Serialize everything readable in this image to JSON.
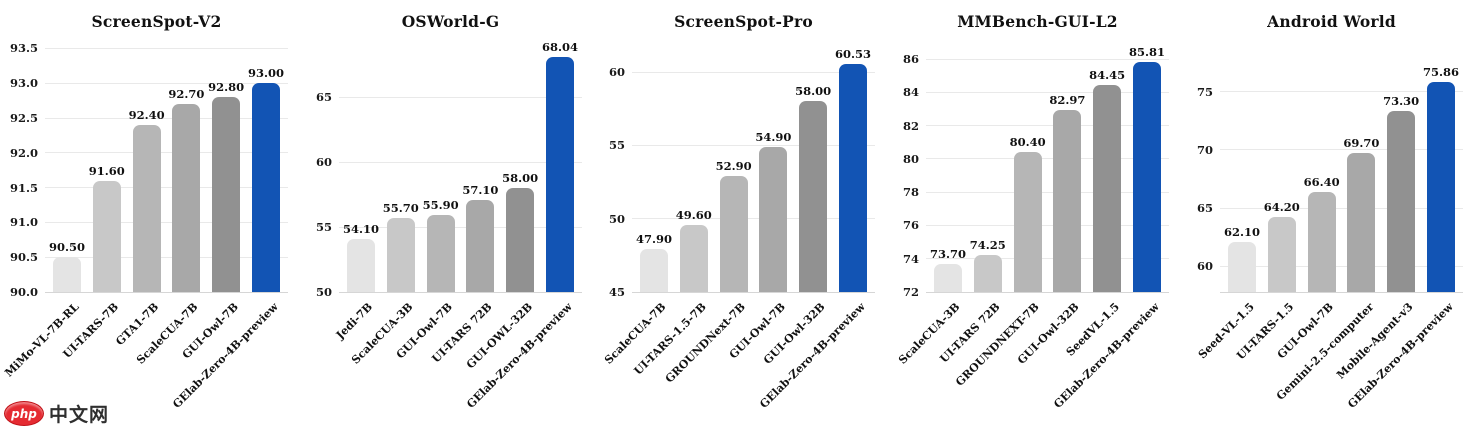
{
  "palette": {
    "bar_grays": [
      "#e4e4e4",
      "#c8c8c8",
      "#b6b6b6",
      "#a8a8a8",
      "#919191"
    ],
    "accent_blue": "#1254b4",
    "grid_color": "#e9e9e9",
    "axis_color": "#d6d6d6",
    "text_color": "#111111"
  },
  "watermark": {
    "badge_text": "php",
    "site_text": "中文网"
  },
  "chart_data": [
    {
      "type": "bar",
      "title": "ScreenSpot-V2",
      "categories": [
        "MiMo-VL-7B-RL",
        "UI-TARS-7B",
        "GTA1-7B",
        "ScaleCUA-7B",
        "GUI-Owl-7B",
        "GElab-Zero-4B-preview"
      ],
      "values": [
        90.5,
        91.6,
        92.4,
        92.7,
        92.8,
        93.0
      ],
      "value_labels": [
        "90.50",
        "91.60",
        "92.40",
        "92.70",
        "92.80",
        "93.00"
      ],
      "ytick_values": [
        90.0,
        90.5,
        91.0,
        91.5,
        92.0,
        92.5,
        93.0,
        93.5
      ],
      "ytick_labels": [
        "90.0",
        "90.5",
        "91.0",
        "91.5",
        "92.0",
        "92.5",
        "93.0",
        "93.5"
      ],
      "ylim": [
        90.0,
        93.55
      ],
      "grid": true,
      "legend": null,
      "xlabel": "",
      "ylabel": ""
    },
    {
      "type": "bar",
      "title": "OSWorld-G",
      "categories": [
        "Jedi-7B",
        "ScaleCUA-3B",
        "GUI-Owl-7B",
        "UI-TARS 72B",
        "GUI-OWL-32B",
        "GElab-Zero-4B-preview"
      ],
      "values": [
        54.1,
        55.7,
        55.9,
        57.1,
        58.0,
        68.04
      ],
      "value_labels": [
        "54.10",
        "55.70",
        "55.90",
        "57.10",
        "58.00",
        "68.04"
      ],
      "ytick_values": [
        50,
        55,
        60,
        65
      ],
      "ytick_labels": [
        "50",
        "55",
        "60",
        "65"
      ],
      "ylim": [
        50.0,
        69.0
      ],
      "grid": true,
      "legend": null,
      "xlabel": "",
      "ylabel": ""
    },
    {
      "type": "bar",
      "title": "ScreenSpot-Pro",
      "categories": [
        "ScaleCUA-7B",
        "UI-TARS-1.5-7B",
        "GROUNDNext-7B",
        "GUI-Owl-7B",
        "GUI-Owl-32B",
        "GElab-Zero-4B-preview"
      ],
      "values": [
        47.9,
        49.6,
        52.9,
        54.9,
        58.0,
        60.53
      ],
      "value_labels": [
        "47.90",
        "49.60",
        "52.90",
        "54.90",
        "58.00",
        "60.53"
      ],
      "ytick_values": [
        45,
        50,
        55,
        60
      ],
      "ytick_labels": [
        "45",
        "50",
        "55",
        "60"
      ],
      "ylim": [
        45.0,
        61.85
      ],
      "grid": true,
      "legend": null,
      "xlabel": "",
      "ylabel": ""
    },
    {
      "type": "bar",
      "title": "MMBench-GUI-L2",
      "categories": [
        "ScaleCUA-3B",
        "UI-TARS 72B",
        "GROUNDNEXT-7B",
        "GUI-Owl-32B",
        "SeedVL-1.5",
        "GElab-Zero-4B-preview"
      ],
      "values": [
        73.7,
        74.25,
        80.4,
        82.97,
        84.45,
        85.81
      ],
      "value_labels": [
        "73.70",
        "74.25",
        "80.40",
        "82.97",
        "84.45",
        "85.81"
      ],
      "ytick_values": [
        72,
        74,
        76,
        78,
        80,
        82,
        84,
        86
      ],
      "ytick_labels": [
        "72",
        "74",
        "76",
        "78",
        "80",
        "82",
        "84",
        "86"
      ],
      "ylim": [
        72.0,
        86.85
      ],
      "grid": true,
      "legend": null,
      "xlabel": "",
      "ylabel": ""
    },
    {
      "type": "bar",
      "title": "Android World",
      "categories": [
        "Seed-VL-1.5",
        "UI-TARS-1.5",
        "GUI-Owl-7B",
        "Gemini-2.5-computer",
        "Mobile-Agent-v3",
        "GElab-Zero-4B-preview"
      ],
      "values": [
        62.1,
        64.2,
        66.4,
        69.7,
        73.3,
        75.86
      ],
      "value_labels": [
        "62.10",
        "64.20",
        "66.40",
        "69.70",
        "73.30",
        "75.86"
      ],
      "ytick_values": [
        60,
        65,
        70,
        75
      ],
      "ytick_labels": [
        "60",
        "65",
        "70",
        "75"
      ],
      "ylim": [
        57.8,
        79.0
      ],
      "grid": true,
      "legend": null,
      "xlabel": "",
      "ylabel": ""
    }
  ]
}
